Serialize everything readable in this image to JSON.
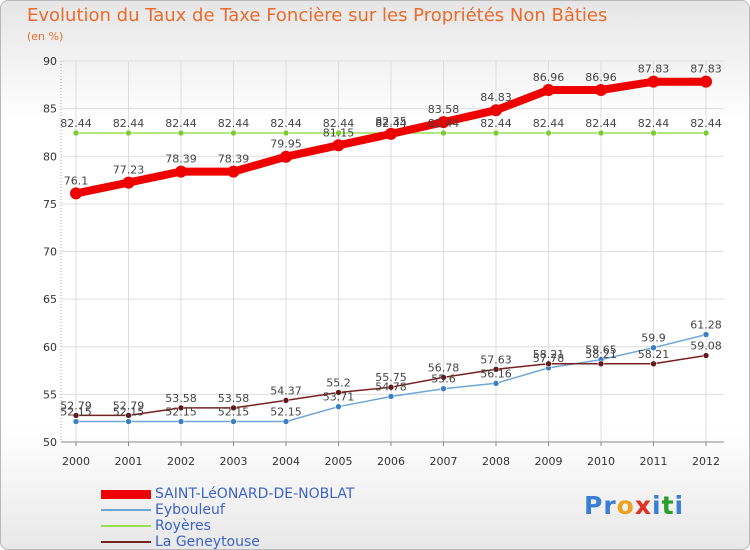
{
  "title": "Evolution du Taux de Taxe Foncière sur les Propriétés Non Bâties",
  "subtitle": "(en %)",
  "logo": {
    "text": "Proxiti",
    "letters": [
      "P",
      "r",
      "o",
      "x",
      "i",
      "t",
      "i"
    ],
    "colors": [
      "#3a7fd5",
      "#3a7fd5",
      "#f0a020",
      "#e03020",
      "#3a7fd5",
      "#2aa02a",
      "#3a7fd5"
    ]
  },
  "chart_data": {
    "type": "line",
    "title": "Evolution du Taux de Taxe Foncière sur les Propriétés Non Bâties",
    "ylabel": "(en %)",
    "xlabel": "",
    "ylim": [
      50,
      90
    ],
    "yticks": [
      50,
      55,
      60,
      65,
      70,
      75,
      80,
      85,
      90
    ],
    "categories": [
      "2000",
      "2001",
      "2002",
      "2003",
      "2004",
      "2005",
      "2006",
      "2007",
      "2008",
      "2009",
      "2010",
      "2011",
      "2012"
    ],
    "series": [
      {
        "name": "SAINT-LéONARD-DE-NOBLAT",
        "color": "#ee0000",
        "values": [
          76.1,
          77.23,
          78.39,
          78.39,
          79.95,
          81.15,
          82.35,
          83.58,
          84.83,
          86.96,
          86.96,
          87.83,
          87.83
        ],
        "labels": [
          "76.1",
          "77.23",
          "78.39",
          "78.39",
          "79.95",
          "81.15",
          "82.35",
          "83.58",
          "84.83",
          "86.96",
          "86.96",
          "87.83",
          "87.83"
        ]
      },
      {
        "name": "Eybouleuf",
        "color": "#6fa6d6",
        "values": [
          52.15,
          52.15,
          52.15,
          52.15,
          52.15,
          53.71,
          54.78,
          55.6,
          56.16,
          57.78,
          58.65,
          59.9,
          61.28
        ],
        "labels": [
          "52.15",
          "52.15",
          "52.15",
          "52.15",
          "52.15",
          "53.71",
          "54.78",
          "55.6",
          "56.16",
          "57.78",
          "58.65",
          "59.9",
          "61.28"
        ]
      },
      {
        "name": "Royères",
        "color": "#99dd55",
        "values": [
          82.44,
          82.44,
          82.44,
          82.44,
          82.44,
          82.44,
          82.44,
          82.44,
          82.44,
          82.44,
          82.44,
          82.44,
          82.44
        ],
        "labels": [
          "82.44",
          "82.44",
          "82.44",
          "82.44",
          "82.44",
          "82.44",
          "82.44",
          "82.44",
          "82.44",
          "82.44",
          "82.44",
          "82.44",
          "82.44"
        ]
      },
      {
        "name": "La Geneytouse",
        "color": "#772222",
        "values": [
          52.79,
          52.79,
          53.58,
          53.58,
          54.37,
          55.2,
          55.75,
          56.78,
          57.63,
          58.21,
          58.21,
          58.21,
          59.08
        ],
        "labels": [
          "52.79",
          "52.79",
          "53.58",
          "53.58",
          "54.37",
          "55.2",
          "55.75",
          "56.78",
          "57.63",
          "58.21",
          "58.21",
          "58.21",
          "59.08"
        ]
      }
    ]
  }
}
